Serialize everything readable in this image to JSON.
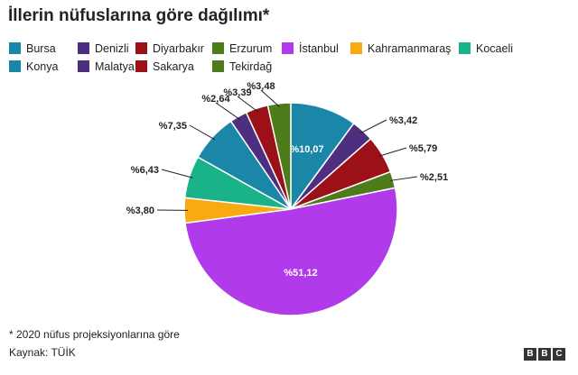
{
  "title": "İllerin nüfuslarına göre dağılımı*",
  "footnote": "* 2020 nüfus projeksiyonlarına göre",
  "source": "Kaynak: TÜİK",
  "logo_letters": [
    "B",
    "B",
    "C"
  ],
  "chart_data": {
    "type": "pie",
    "legend": [
      {
        "name": "Bursa",
        "color": "#1b87a8"
      },
      {
        "name": "Denizli",
        "color": "#4e2f7f"
      },
      {
        "name": "Diyarbakır",
        "color": "#9c1017"
      },
      {
        "name": "Erzurum",
        "color": "#4e7c1a"
      },
      {
        "name": "İstanbul",
        "color": "#b13bea"
      },
      {
        "name": "Kahramanmaraş",
        "color": "#f8aa12"
      },
      {
        "name": "Kocaeli",
        "color": "#1ab389"
      },
      {
        "name": "Konya",
        "color": "#1b87a8"
      },
      {
        "name": "Malatya",
        "color": "#4e2f7f"
      },
      {
        "name": "Sakarya",
        "color": "#9c1017"
      },
      {
        "name": "Tekirdağ",
        "color": "#4e7c1a"
      }
    ],
    "slices": [
      {
        "name": "Bursa",
        "value": 10.07,
        "label": "%10,07",
        "color": "#1b87a8"
      },
      {
        "name": "Denizli",
        "value": 3.42,
        "label": "%3,42",
        "color": "#4e2f7f"
      },
      {
        "name": "Diyarbakır",
        "value": 5.79,
        "label": "%5,79",
        "color": "#9c1017"
      },
      {
        "name": "Erzurum",
        "value": 2.51,
        "label": "%2,51",
        "color": "#4e7c1a"
      },
      {
        "name": "İstanbul",
        "value": 51.12,
        "label": "%51,12",
        "color": "#b13bea"
      },
      {
        "name": "Kahramanmaraş",
        "value": 3.8,
        "label": "%3,80",
        "color": "#f8aa12"
      },
      {
        "name": "Kocaeli",
        "value": 6.43,
        "label": "%6,43",
        "color": "#1ab389"
      },
      {
        "name": "Konya",
        "value": 7.35,
        "label": "%7,35",
        "color": "#1b87a8"
      },
      {
        "name": "Malatya",
        "value": 2.64,
        "label": "%2,64",
        "color": "#4e2f7f"
      },
      {
        "name": "Sakarya",
        "value": 3.39,
        "label": "%3,39",
        "color": "#9c1017"
      },
      {
        "name": "Tekirdağ",
        "value": 3.48,
        "label": "%3,48",
        "color": "#4e7c1a"
      }
    ]
  }
}
